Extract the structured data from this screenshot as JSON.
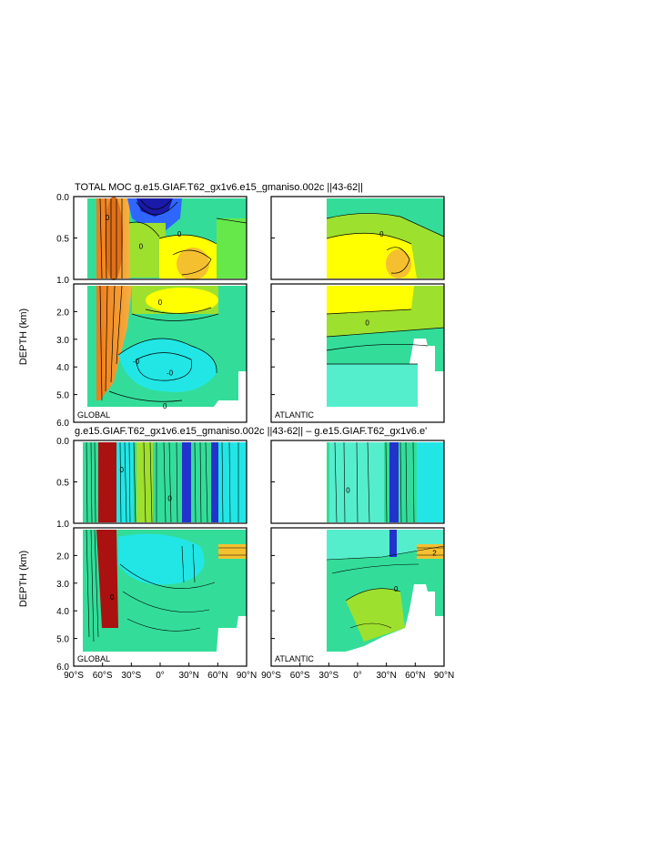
{
  "figure": {
    "top_title": "TOTAL MOC g.e15.GIAF.T62_gx1v6.e15_gmaniso.002c  ||43-62||",
    "bottom_title": "g.e15.GIAF.T62_gx1v6.e15_gmaniso.002c  ||43-62|| – g.e15.GIAF.T62_gx1v6.e'",
    "y_axis_label": "DEPTH (km)"
  },
  "chart_data": [
    {
      "type": "contour",
      "title": "TOTAL MOC g.e15.GIAF.T62_gx1v6.e15_gmaniso.002c  ||43-62||",
      "panels": [
        {
          "label": "GLOBAL",
          "contour_labels": [
            {
              "lat": -55,
              "depth": 0.25,
              "text": "0"
            },
            {
              "lat": -20,
              "depth": 0.6,
              "text": "0"
            },
            {
              "lat": 20,
              "depth": 0.45,
              "text": "0"
            },
            {
              "lat": 0,
              "depth": 1.65,
              "text": "0"
            },
            {
              "lat": -25,
              "depth": 3.8,
              "text": "-0"
            },
            {
              "lat": 10,
              "depth": 4.2,
              "text": "-0"
            },
            {
              "lat": 5,
              "depth": 5.4,
              "text": "0"
            }
          ]
        },
        {
          "label": "ATLANTIC",
          "contour_labels": [
            {
              "lat": 25,
              "depth": 0.45,
              "text": "0"
            },
            {
              "lat": 10,
              "depth": 2.4,
              "text": "0"
            }
          ]
        }
      ],
      "x_axis": {
        "range": [
          -90,
          90
        ]
      },
      "y_axis": {
        "label": "DEPTH (km)",
        "ticks_upper": [
          "0.0",
          "0.5",
          "1.0"
        ],
        "ticks_lower": [
          "2.0",
          "3.0",
          "4.0",
          "5.0",
          "6.0"
        ]
      }
    },
    {
      "type": "contour",
      "title": "g.e15.GIAF.T62_gx1v6.e15_gmaniso.002c  ||43-62|| – g.e15.GIAF.T62_gx1v6.e'",
      "panels": [
        {
          "label": "GLOBAL",
          "contour_labels": [
            {
              "lat": -40,
              "depth": 0.35,
              "text": "0"
            },
            {
              "lat": 10,
              "depth": 0.7,
              "text": "0"
            },
            {
              "lat": -50,
              "depth": 3.5,
              "text": "0"
            }
          ]
        },
        {
          "label": "ATLANTIC",
          "contour_labels": [
            {
              "lat": -10,
              "depth": 0.6,
              "text": "0"
            },
            {
              "lat": 80,
              "depth": 1.9,
              "text": "2"
            },
            {
              "lat": 40,
              "depth": 3.2,
              "text": "0"
            }
          ]
        }
      ],
      "x_axis": {
        "range": [
          -90,
          90
        ],
        "tick_labels_global": [
          "90°S",
          "60°S",
          "30°S",
          "0°",
          "30°N",
          "60°N",
          "90°N"
        ],
        "tick_labels_atlantic": [
          "90°S",
          "60°S",
          "30°S",
          "0°",
          "30°N",
          "60°N",
          "90°N"
        ]
      },
      "y_axis": {
        "label": "DEPTH (km)",
        "ticks_upper": [
          "0.0",
          "0.5",
          "1.0"
        ],
        "ticks_lower": [
          "2.0",
          "3.0",
          "4.0",
          "5.0",
          "6.0"
        ]
      }
    }
  ]
}
